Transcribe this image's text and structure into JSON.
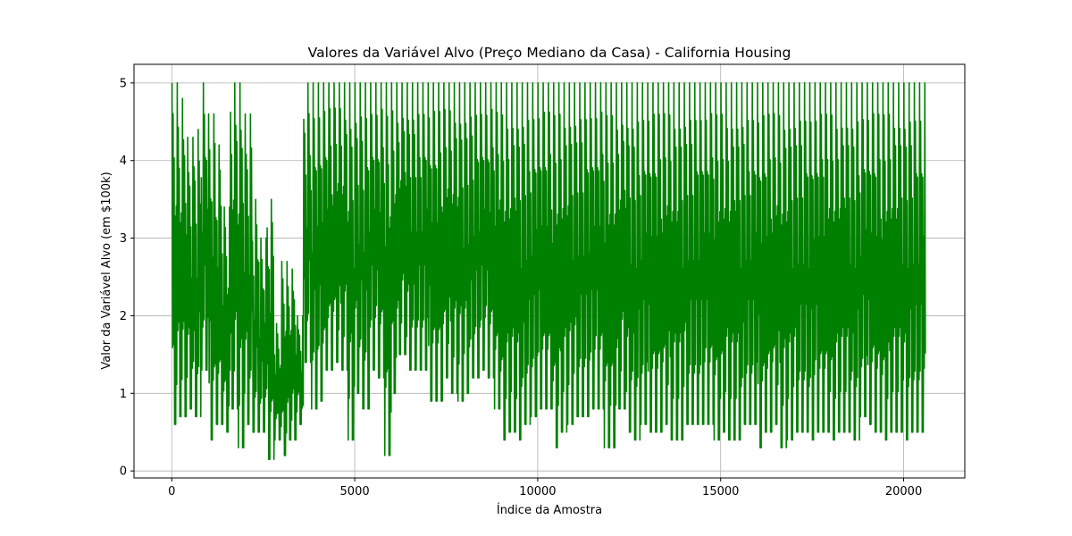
{
  "chart_data": {
    "type": "line",
    "title": "Valores da Variável Alvo (Preço Mediano da Casa) - California Housing",
    "xlabel": "Índice da Amostra",
    "ylabel": "Valor da Variável Alvo (em $100k)",
    "xlim": [
      -1032,
      21671
    ],
    "ylim": [
      -0.09,
      5.24
    ],
    "xticks": [
      0,
      5000,
      10000,
      15000,
      20000
    ],
    "yticks": [
      0,
      1,
      2,
      3,
      4,
      5
    ],
    "grid": true,
    "n_points": 20640,
    "series": [
      {
        "color": "#008000",
        "envelope_step": 200,
        "x_start": 0,
        "envelope": [
          [
            0.6,
            5.0
          ],
          [
            0.7,
            4.8
          ],
          [
            0.8,
            4.3
          ],
          [
            0.7,
            4.4
          ],
          [
            1.3,
            5.0
          ],
          [
            0.4,
            4.6
          ],
          [
            0.6,
            4.2
          ],
          [
            0.5,
            3.4
          ],
          [
            0.8,
            5.0
          ],
          [
            0.3,
            5.0
          ],
          [
            0.6,
            4.6
          ],
          [
            0.5,
            3.5
          ],
          [
            0.5,
            3.0
          ],
          [
            0.15,
            3.5
          ],
          [
            0.4,
            1.9
          ],
          [
            0.2,
            2.7
          ],
          [
            0.4,
            2.6
          ],
          [
            0.6,
            2.0
          ],
          [
            1.4,
            5.0
          ],
          [
            0.8,
            5.0
          ],
          [
            0.9,
            5.0
          ],
          [
            1.3,
            5.0
          ],
          [
            1.4,
            5.0
          ],
          [
            1.3,
            5.0
          ],
          [
            0.4,
            5.0
          ],
          [
            1.0,
            5.0
          ],
          [
            0.8,
            5.0
          ],
          [
            1.3,
            5.0
          ],
          [
            1.2,
            5.0
          ],
          [
            0.2,
            5.0
          ],
          [
            1.0,
            5.0
          ],
          [
            1.5,
            5.0
          ],
          [
            1.3,
            5.0
          ],
          [
            1.3,
            5.0
          ],
          [
            1.3,
            5.0
          ],
          [
            0.9,
            5.0
          ],
          [
            0.9,
            5.0
          ],
          [
            1.2,
            5.0
          ],
          [
            1.0,
            5.0
          ],
          [
            0.9,
            5.0
          ],
          [
            1.0,
            5.0
          ],
          [
            1.2,
            5.0
          ],
          [
            1.3,
            5.0
          ],
          [
            1.2,
            5.0
          ],
          [
            0.8,
            5.0
          ],
          [
            0.4,
            5.0
          ],
          [
            0.5,
            5.0
          ],
          [
            0.4,
            5.0
          ],
          [
            0.6,
            5.0
          ],
          [
            0.7,
            5.0
          ],
          [
            0.8,
            5.0
          ],
          [
            0.8,
            5.0
          ],
          [
            0.3,
            5.0
          ],
          [
            0.5,
            5.0
          ],
          [
            0.6,
            5.0
          ],
          [
            0.7,
            5.0
          ],
          [
            0.7,
            5.0
          ],
          [
            0.8,
            5.0
          ],
          [
            0.8,
            5.0
          ],
          [
            0.3,
            5.0
          ],
          [
            0.3,
            5.0
          ],
          [
            0.8,
            5.0
          ],
          [
            0.5,
            5.0
          ],
          [
            0.4,
            5.0
          ],
          [
            0.6,
            5.0
          ],
          [
            0.5,
            5.0
          ],
          [
            0.5,
            5.0
          ],
          [
            0.6,
            5.0
          ],
          [
            0.4,
            5.0
          ],
          [
            0.4,
            5.0
          ],
          [
            0.6,
            5.0
          ],
          [
            0.6,
            5.0
          ],
          [
            0.6,
            5.0
          ],
          [
            0.6,
            5.0
          ],
          [
            0.4,
            5.0
          ],
          [
            0.5,
            5.0
          ],
          [
            0.4,
            5.0
          ],
          [
            0.4,
            5.0
          ],
          [
            0.6,
            5.0
          ],
          [
            0.6,
            5.0
          ],
          [
            0.3,
            5.0
          ],
          [
            0.5,
            5.0
          ],
          [
            0.6,
            5.0
          ],
          [
            0.3,
            5.0
          ],
          [
            0.4,
            5.0
          ],
          [
            0.5,
            5.0
          ],
          [
            0.5,
            5.0
          ],
          [
            0.4,
            5.0
          ],
          [
            0.5,
            5.0
          ],
          [
            0.5,
            5.0
          ],
          [
            0.4,
            5.0
          ],
          [
            0.5,
            5.0
          ],
          [
            0.5,
            5.0
          ],
          [
            0.4,
            5.0
          ],
          [
            0.7,
            5.0
          ],
          [
            0.6,
            5.0
          ],
          [
            0.5,
            5.0
          ],
          [
            0.4,
            5.0
          ],
          [
            0.5,
            5.0
          ],
          [
            0.5,
            5.0
          ],
          [
            0.4,
            5.0
          ],
          [
            0.5,
            5.0
          ],
          [
            0.5,
            5.0
          ]
        ]
      }
    ]
  }
}
